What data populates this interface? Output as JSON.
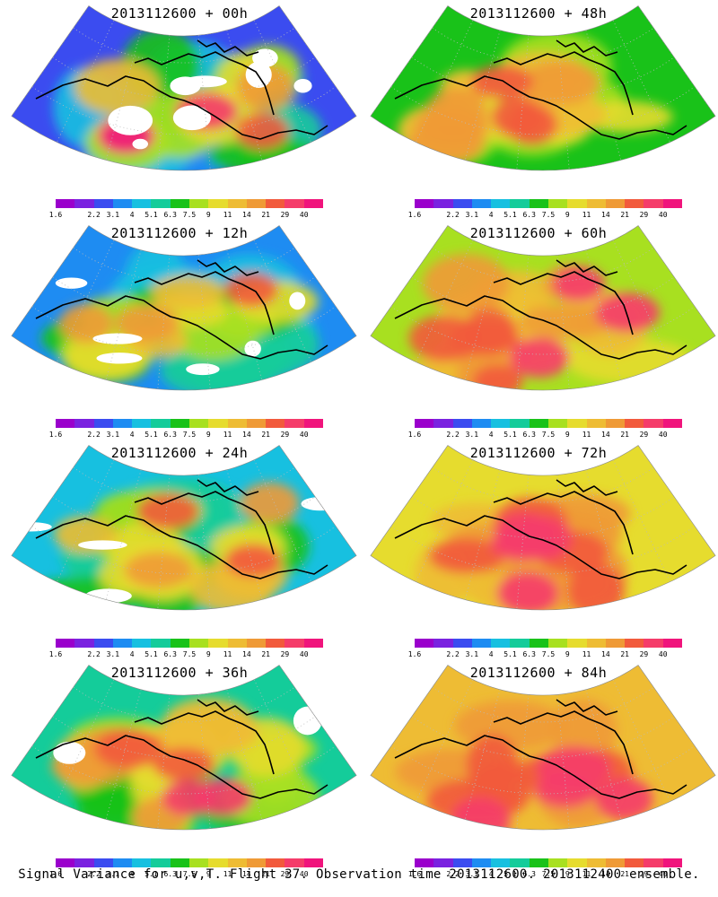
{
  "panels": [
    {
      "title": "2013112600 + 00h",
      "lead_hours": 0,
      "mean_level_index": 2,
      "max_level_index": 13
    },
    {
      "title": "2013112600 + 48h",
      "lead_hours": 48,
      "mean_level_index": 6,
      "max_level_index": 11
    },
    {
      "title": "2013112600 + 12h",
      "lead_hours": 12,
      "mean_level_index": 3,
      "max_level_index": 11
    },
    {
      "title": "2013112600 + 60h",
      "lead_hours": 60,
      "mean_level_index": 7,
      "max_level_index": 12
    },
    {
      "title": "2013112600 + 24h",
      "lead_hours": 24,
      "mean_level_index": 4,
      "max_level_index": 11
    },
    {
      "title": "2013112600 + 72h",
      "lead_hours": 72,
      "mean_level_index": 8,
      "max_level_index": 12
    },
    {
      "title": "2013112600 + 36h",
      "lead_hours": 36,
      "mean_level_index": 5,
      "max_level_index": 12
    },
    {
      "title": "2013112600 + 84h",
      "lead_hours": 84,
      "mean_level_index": 9,
      "max_level_index": 12
    }
  ],
  "colorbar": {
    "labels": [
      "1.6",
      "2.2",
      "3.1",
      "4",
      "5.1",
      "6.3",
      "7.5",
      "9",
      "11",
      "14",
      "21",
      "29",
      "40"
    ],
    "colors": [
      "#9a00cc",
      "#7a22e0",
      "#3b4cf0",
      "#1e8cf2",
      "#17c0e0",
      "#14cc9a",
      "#19c219",
      "#a8e020",
      "#e6dc2e",
      "#eebc34",
      "#ef9a36",
      "#f25a3c",
      "#f53c6a",
      "#f0147c"
    ]
  },
  "caption": "Signal Variance for u,v,T. Flight 37. Observation time 2013112600. 2013112400 ensemble."
}
